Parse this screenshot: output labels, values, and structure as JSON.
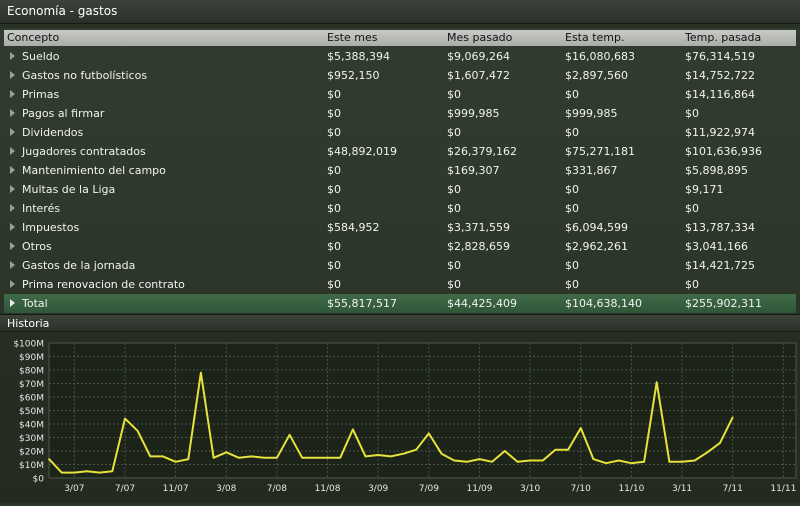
{
  "window": {
    "title": "Economía - gastos"
  },
  "table": {
    "headers": [
      "Concepto",
      "Este mes",
      "Mes pasado",
      "Esta temp.",
      "Temp. pasada"
    ],
    "rows": [
      [
        "Sueldo",
        "$5,388,394",
        "$9,069,264",
        "$16,080,683",
        "$76,314,519"
      ],
      [
        "Gastos no futbolísticos",
        "$952,150",
        "$1,607,472",
        "$2,897,560",
        "$14,752,722"
      ],
      [
        "Primas",
        "$0",
        "$0",
        "$0",
        "$14,116,864"
      ],
      [
        "Pagos al firmar",
        "$0",
        "$999,985",
        "$999,985",
        "$0"
      ],
      [
        "Dividendos",
        "$0",
        "$0",
        "$0",
        "$11,922,974"
      ],
      [
        "Jugadores contratados",
        "$48,892,019",
        "$26,379,162",
        "$75,271,181",
        "$101,636,936"
      ],
      [
        "Mantenimiento del campo",
        "$0",
        "$169,307",
        "$331,867",
        "$5,898,895"
      ],
      [
        "Multas de la Liga",
        "$0",
        "$0",
        "$0",
        "$9,171"
      ],
      [
        "Interés",
        "$0",
        "$0",
        "$0",
        "$0"
      ],
      [
        "Impuestos",
        "$584,952",
        "$3,371,559",
        "$6,094,599",
        "$13,787,334"
      ],
      [
        "Otros",
        "$0",
        "$2,828,659",
        "$2,962,261",
        "$3,041,166"
      ],
      [
        "Gastos de la jornada",
        "$0",
        "$0",
        "$0",
        "$14,421,725"
      ],
      [
        "Prima renovacion de contrato",
        "$0",
        "$0",
        "$0",
        "$0"
      ]
    ],
    "total": [
      "Total",
      "$55,817,517",
      "$44,425,409",
      "$104,638,140",
      "$255,902,311"
    ]
  },
  "history": {
    "title": "Historia"
  },
  "chart_data": {
    "type": "line",
    "title": "",
    "xlabel": "",
    "ylabel": "",
    "y_tick_labels": [
      "$0",
      "$10M",
      "$20M",
      "$30M",
      "$40M",
      "$50M",
      "$60M",
      "$70M",
      "$80M",
      "$90M",
      "$100M"
    ],
    "ylim": [
      0,
      100
    ],
    "y_unit": "$M",
    "x_tick_labels": [
      "3/07",
      "7/07",
      "11/07",
      "3/08",
      "7/08",
      "11/08",
      "3/09",
      "7/09",
      "11/09",
      "3/10",
      "7/10",
      "11/10",
      "3/11",
      "7/11",
      "11/11"
    ],
    "x_tick_index_first": 2,
    "x_tick_step": 4,
    "x_count": 60,
    "grid": true,
    "line_color": "#e6e23a",
    "series": [
      {
        "values": [
          14,
          4,
          4,
          5,
          4,
          5,
          44,
          35,
          16,
          16,
          12,
          14,
          78,
          15,
          19,
          15,
          16,
          15,
          15,
          32,
          15,
          15,
          15,
          15,
          36,
          16,
          17,
          16,
          18,
          21,
          33,
          18,
          13,
          12,
          14,
          12,
          20,
          12,
          13,
          13,
          21,
          21,
          37,
          14,
          11,
          13,
          11,
          12,
          71,
          12,
          12,
          13,
          19,
          26,
          45
        ]
      }
    ]
  }
}
